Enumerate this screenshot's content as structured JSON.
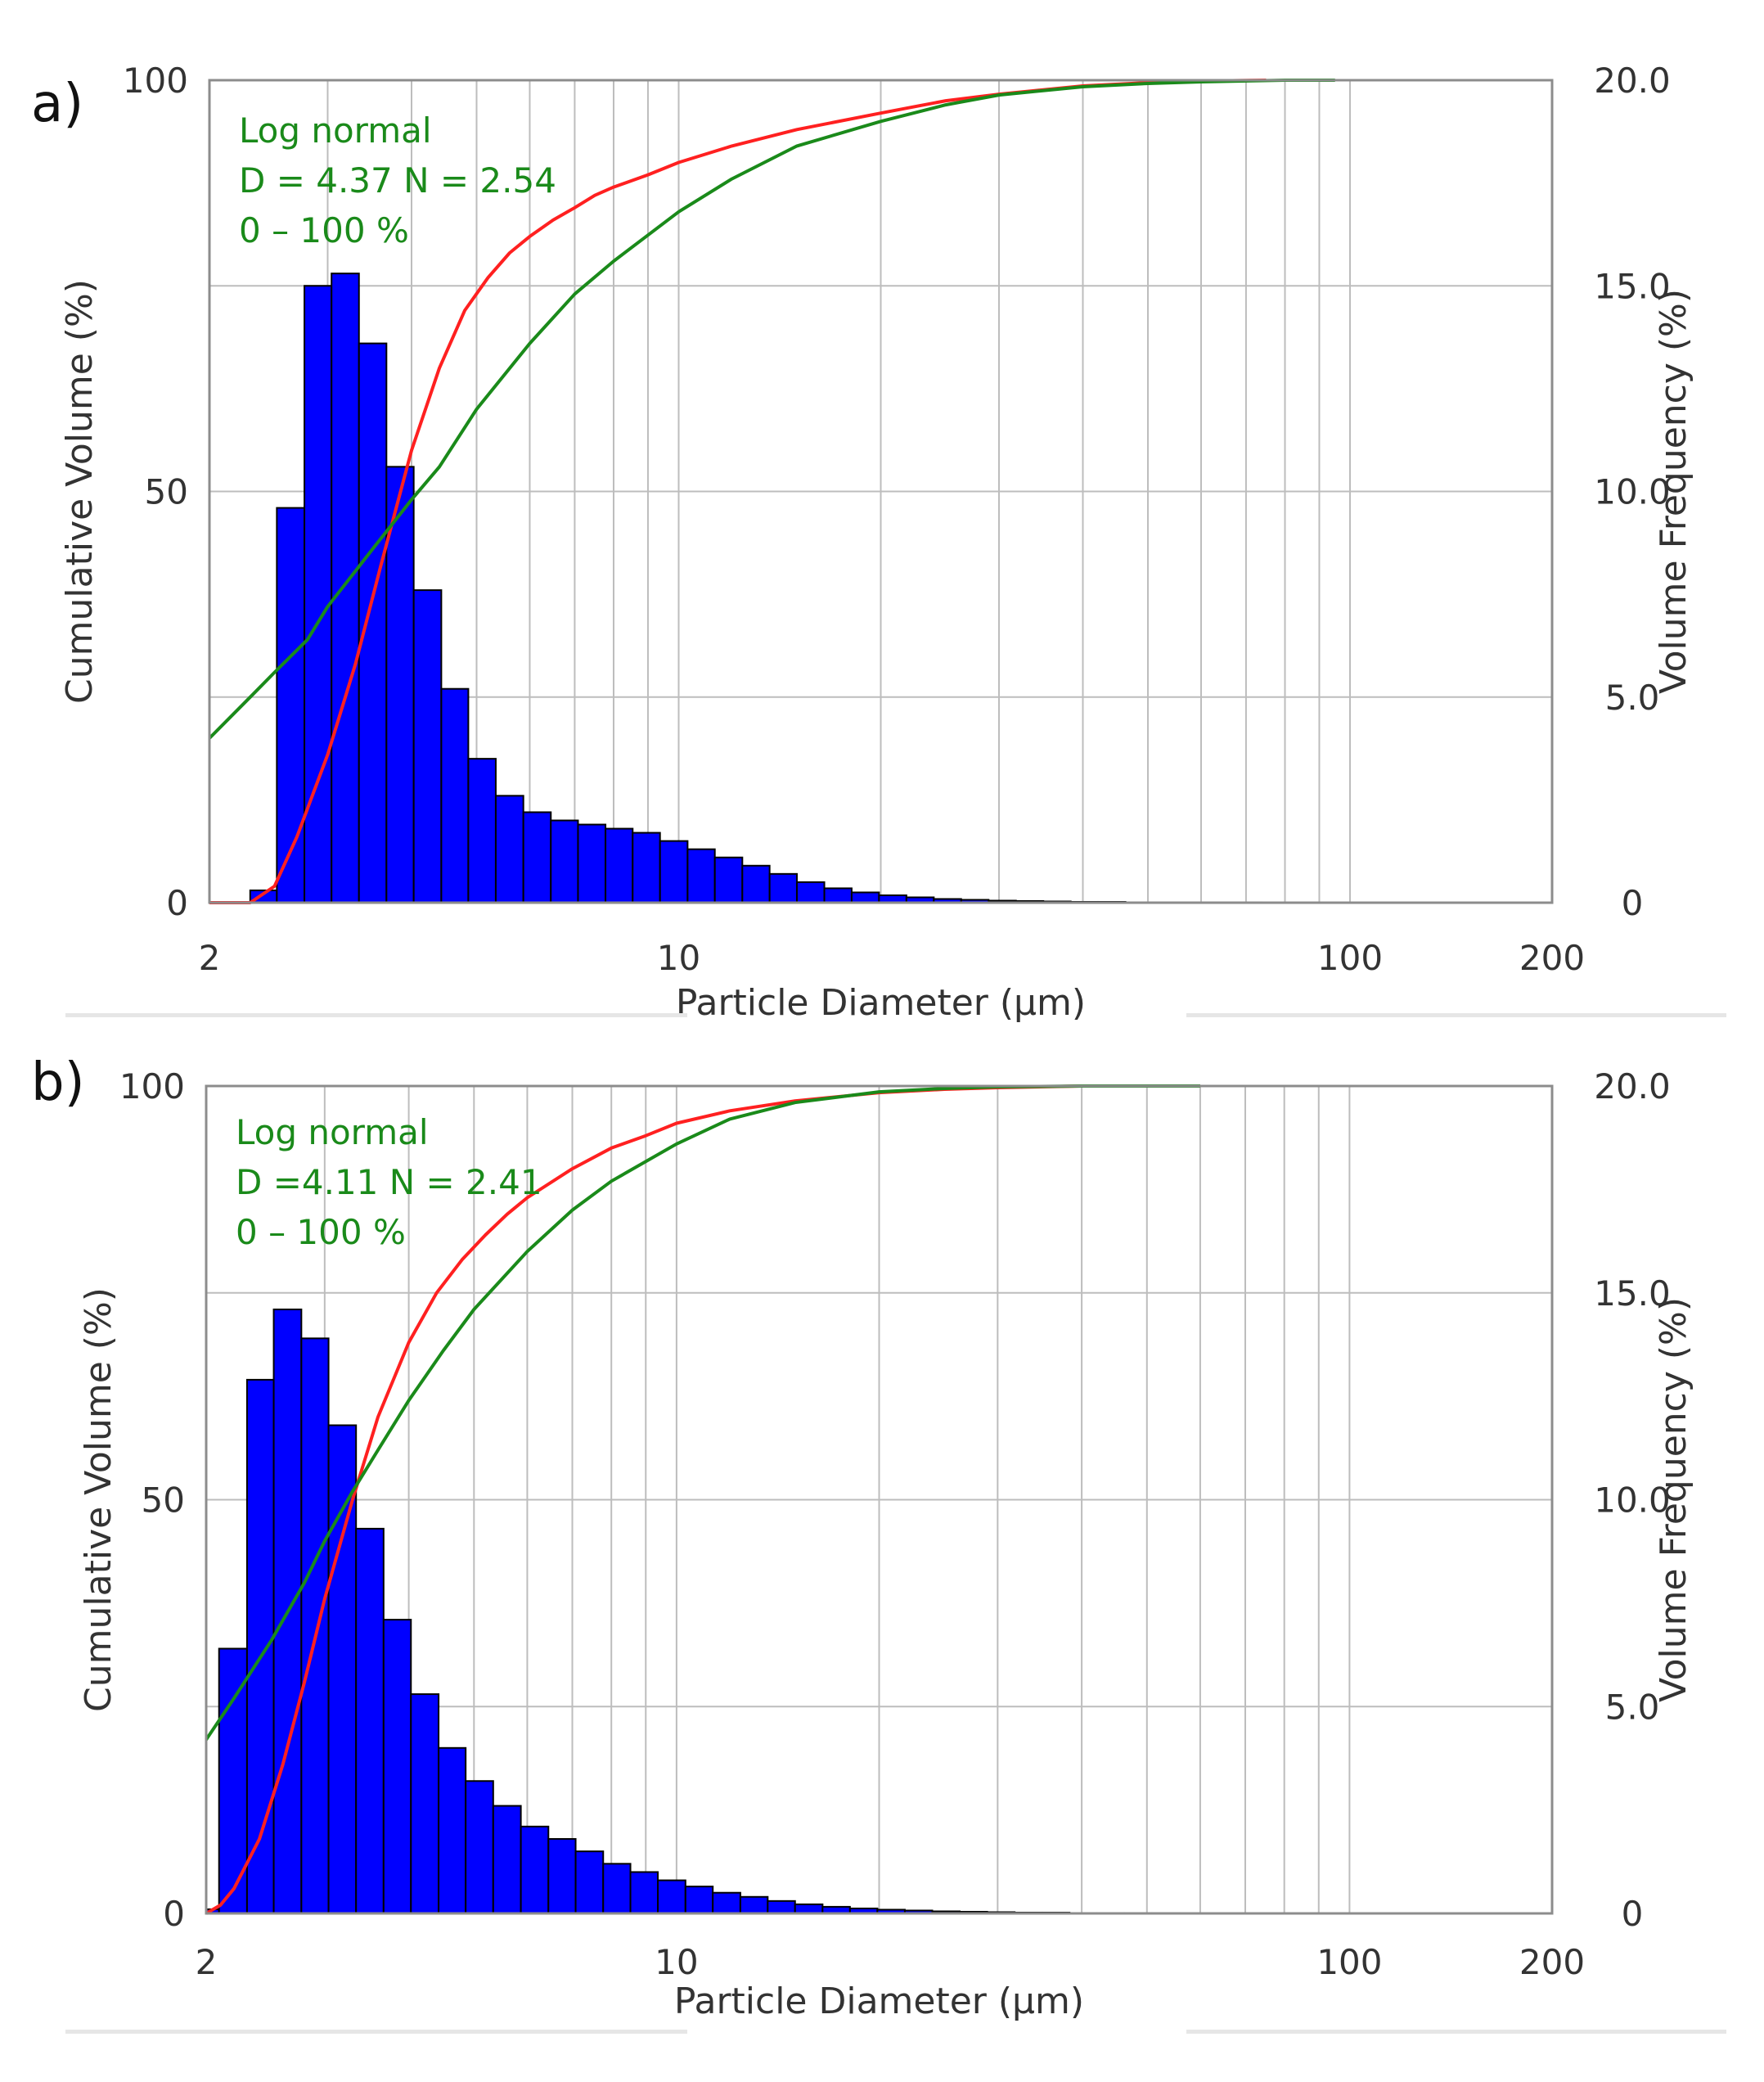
{
  "figure": {
    "colors": {
      "bars": "#0000ff",
      "bar_edge": "#000000",
      "measured_curve": "#ff2020",
      "fit_curve": "#1a8a1a",
      "grid": "#bdbdbd",
      "text": "#333333"
    }
  },
  "chart_data": [
    {
      "type": "bar",
      "panel_label": "a)",
      "title": "",
      "xlabel": "Particle Diameter (µm)",
      "ylabel_left": "Cumulative Volume (%)",
      "ylabel_right": "Volume Frequency (%)",
      "x_scale": "log",
      "xlim": [
        2,
        200
      ],
      "x_tick_values": [
        2,
        10,
        100,
        200
      ],
      "x_tick_labels": [
        "2",
        "10",
        "100",
        "200"
      ],
      "ylim_left": [
        0,
        100
      ],
      "y_left_tick_values": [
        0,
        50,
        100
      ],
      "y_left_tick_labels": [
        "0",
        "50",
        "100"
      ],
      "ylim_right": [
        0,
        20
      ],
      "y_right_tick_values": [
        0,
        5,
        10,
        15,
        20
      ],
      "y_right_tick_labels": [
        "0",
        "5.0",
        "10.0",
        "15.0",
        "20.0"
      ],
      "annotation": [
        "Log normal",
        "D = 4.37 N = 2.54",
        "0 – 100  %"
      ],
      "histogram": {
        "name": "Volume Frequency (%)",
        "bin_edges": [
          2.3,
          2.52,
          2.77,
          3.04,
          3.34,
          3.67,
          4.03,
          4.43,
          4.86,
          5.34,
          5.87,
          6.45,
          7.08,
          7.78,
          8.54,
          9.38,
          10.31,
          11.32,
          12.44,
          13.66,
          15.0,
          16.48,
          18.1,
          19.88,
          21.84,
          23.99,
          26.35,
          28.95,
          31.8,
          34.93,
          38.37,
          42.15,
          46.3,
          50.86,
          55.87,
          61.37,
          67.42,
          74.05,
          81.35,
          89.36,
          98.16,
          107.8
        ],
        "values": [
          0.3,
          9.6,
          15.0,
          15.3,
          13.6,
          10.6,
          7.6,
          5.2,
          3.5,
          2.6,
          2.2,
          2.0,
          1.9,
          1.8,
          1.7,
          1.5,
          1.3,
          1.1,
          0.9,
          0.7,
          0.5,
          0.35,
          0.25,
          0.18,
          0.13,
          0.09,
          0.07,
          0.05,
          0.04,
          0.03,
          0.02,
          0.02,
          0.01,
          0.01,
          0.01,
          0.01,
          0.01,
          0.0,
          0.0,
          0.0,
          0.0
        ]
      },
      "series": [
        {
          "name": "Cumulative Volume (measured)",
          "color_key": "measured_curve",
          "x": [
            2.0,
            2.3,
            2.5,
            2.7,
            3.0,
            3.3,
            3.6,
            4.0,
            4.4,
            4.8,
            5.2,
            5.6,
            6.0,
            6.5,
            7.0,
            7.5,
            8.0,
            9.0,
            10.0,
            12.0,
            15.0,
            20.0,
            25.0,
            30.0,
            40.0,
            50.0,
            60.0,
            75.0
          ],
          "y": [
            0,
            0,
            2,
            8,
            18,
            29,
            41,
            55,
            65,
            72,
            76,
            79,
            81,
            83,
            84.5,
            86,
            87,
            88.5,
            90,
            92,
            94,
            96,
            97.5,
            98.3,
            99.3,
            99.7,
            99.9,
            100
          ]
        },
        {
          "name": "Log normal fit",
          "color_key": "fit_curve",
          "x": [
            2.0,
            2.3,
            2.5,
            2.8,
            3.0,
            3.5,
            4.0,
            4.4,
            5.0,
            6.0,
            7.0,
            8.0,
            10.0,
            12.0,
            15.0,
            20.0,
            25.0,
            30.0,
            40.0,
            50.0,
            60.0,
            80.0,
            95.0
          ],
          "y": [
            20,
            25,
            28,
            32,
            36,
            43,
            49,
            53,
            60,
            68,
            74,
            78,
            84,
            88,
            92,
            95,
            97,
            98.2,
            99.2,
            99.6,
            99.8,
            100,
            100
          ]
        }
      ]
    },
    {
      "type": "bar",
      "panel_label": "b)",
      "title": "",
      "xlabel": "Particle Diameter (µm)",
      "ylabel_left": "Cumulative Volume (%)",
      "ylabel_right": "Volume Frequency (%)",
      "x_scale": "log",
      "xlim": [
        2,
        200
      ],
      "x_tick_values": [
        2,
        10,
        100,
        200
      ],
      "x_tick_labels": [
        "2",
        "10",
        "100",
        "200"
      ],
      "ylim_left": [
        0,
        100
      ],
      "y_left_tick_values": [
        0,
        50,
        100
      ],
      "y_left_tick_labels": [
        "0",
        "50",
        "100"
      ],
      "ylim_right": [
        0,
        20
      ],
      "y_right_tick_values": [
        0,
        5,
        10,
        15,
        20
      ],
      "y_right_tick_labels": [
        "0",
        "5.0",
        "10.0",
        "15.0",
        "20.0"
      ],
      "annotation": [
        "Log normal",
        "D =4.11 N = 2.41",
        "0 – 100  %"
      ],
      "histogram": {
        "name": "Volume Frequency (%)",
        "bin_edges": [
          2.0,
          2.09,
          2.3,
          2.52,
          2.77,
          3.04,
          3.34,
          3.67,
          4.03,
          4.43,
          4.86,
          5.34,
          5.87,
          6.45,
          7.08,
          7.78,
          8.54,
          9.38,
          10.31,
          11.32,
          12.44,
          13.66,
          15.0,
          16.48,
          18.1,
          19.88,
          21.84,
          23.99,
          26.35,
          28.95,
          31.8,
          34.93,
          38.37,
          42.15,
          46.3,
          50.86,
          55.87,
          61.37,
          67.42,
          74.05,
          81.35,
          89.36
        ],
        "values": [
          0.1,
          6.4,
          12.9,
          14.6,
          13.9,
          11.8,
          9.3,
          7.1,
          5.3,
          4.0,
          3.2,
          2.6,
          2.1,
          1.8,
          1.5,
          1.2,
          1.0,
          0.8,
          0.65,
          0.5,
          0.4,
          0.3,
          0.22,
          0.16,
          0.12,
          0.09,
          0.07,
          0.05,
          0.04,
          0.03,
          0.02,
          0.02,
          0.01,
          0.01,
          0.01,
          0.01,
          0.0,
          0.0,
          0.0,
          0.0,
          0.0
        ]
      },
      "series": [
        {
          "name": "Cumulative Volume (measured)",
          "color_key": "measured_curve",
          "x": [
            2.0,
            2.1,
            2.2,
            2.4,
            2.6,
            2.8,
            3.0,
            3.3,
            3.6,
            4.0,
            4.4,
            4.8,
            5.2,
            5.6,
            6.0,
            7.0,
            8.0,
            9.0,
            10.0,
            12.0,
            15.0,
            20.0,
            25.0,
            30.0,
            40.0,
            50.0,
            60.0
          ],
          "y": [
            0,
            1,
            3,
            9,
            18,
            28,
            38,
            50,
            60,
            69,
            75,
            79,
            82,
            84.5,
            86.5,
            90,
            92.5,
            94,
            95.5,
            97,
            98.2,
            99.2,
            99.6,
            99.8,
            100,
            100,
            100
          ]
        },
        {
          "name": "Log normal fit",
          "color_key": "fit_curve",
          "x": [
            2.0,
            2.2,
            2.5,
            2.8,
            3.0,
            3.3,
            3.6,
            4.0,
            4.5,
            5.0,
            6.0,
            7.0,
            8.0,
            10.0,
            12.0,
            15.0,
            20.0,
            25.0,
            30.0,
            40.0,
            50.0,
            60.0
          ],
          "y": [
            21,
            26,
            33,
            40,
            45,
            51,
            56,
            62,
            68,
            73,
            80,
            85,
            88.5,
            93,
            96,
            98,
            99.3,
            99.7,
            99.9,
            100,
            100,
            100
          ]
        }
      ]
    }
  ]
}
